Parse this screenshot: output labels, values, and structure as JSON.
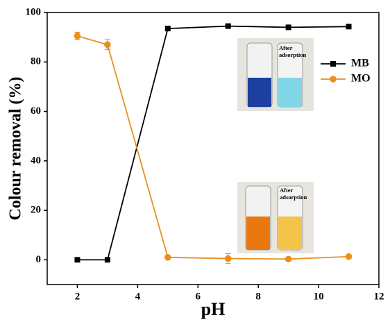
{
  "chart_data": {
    "type": "line",
    "xlabel": "pH",
    "ylabel": "Colour removal (%)",
    "x": [
      2,
      3,
      5,
      7,
      9,
      11
    ],
    "series": [
      {
        "name": "MB",
        "color": "#000000",
        "marker": "square",
        "values": [
          0,
          0,
          93.5,
          94.5,
          94,
          94.3
        ]
      },
      {
        "name": "MO",
        "color": "#e8901e",
        "marker": "circle",
        "values": [
          90.5,
          87,
          1,
          0.5,
          0.3,
          1.3
        ],
        "errors": [
          1.5,
          2,
          0.5,
          2,
          0.5,
          0.5
        ]
      }
    ],
    "xlim": [
      1,
      12
    ],
    "xticks": [
      2,
      4,
      6,
      8,
      10,
      12
    ],
    "ylim": [
      -10,
      100
    ],
    "yticks": [
      0,
      20,
      40,
      60,
      80,
      100
    ],
    "legend": "upper right",
    "insets": [
      [
        "After",
        "adsorption"
      ],
      [
        "After",
        "adsorption"
      ]
    ]
  }
}
